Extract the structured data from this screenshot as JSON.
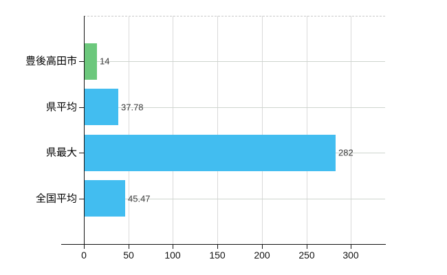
{
  "chart_data": {
    "type": "bar",
    "orientation": "horizontal",
    "title": "",
    "xlabel": "",
    "ylabel": "",
    "categories": [
      "豊後高田市",
      "県平均",
      "県最大",
      "全国平均"
    ],
    "values": [
      14,
      37.78,
      282,
      45.47
    ],
    "value_labels": [
      "14",
      "37.78",
      "282",
      "45.47"
    ],
    "bar_colors": [
      "#6cc87c",
      "#42bdf0",
      "#42bdf0",
      "#42bdf0"
    ],
    "x_ticks": [
      0,
      50,
      100,
      150,
      200,
      250,
      300
    ],
    "x_tick_labels": [
      "0",
      "50",
      "100",
      "150",
      "200",
      "250",
      "300"
    ],
    "xlim": [
      0,
      338.4
    ],
    "grid": true,
    "legend_position": "none",
    "colors": {
      "background": "#ffffff",
      "green_bar": "#6cc87c",
      "blue_bar": "#42bdf0",
      "axis": "#111111",
      "vertical_grid": "#d9d9d9",
      "horizontal_grid": "#ced4ce",
      "plot_top_border": "#c9c9c9",
      "value_text": "#3b3b3b",
      "category_text": "#000000",
      "tick_text": "#111111"
    }
  }
}
